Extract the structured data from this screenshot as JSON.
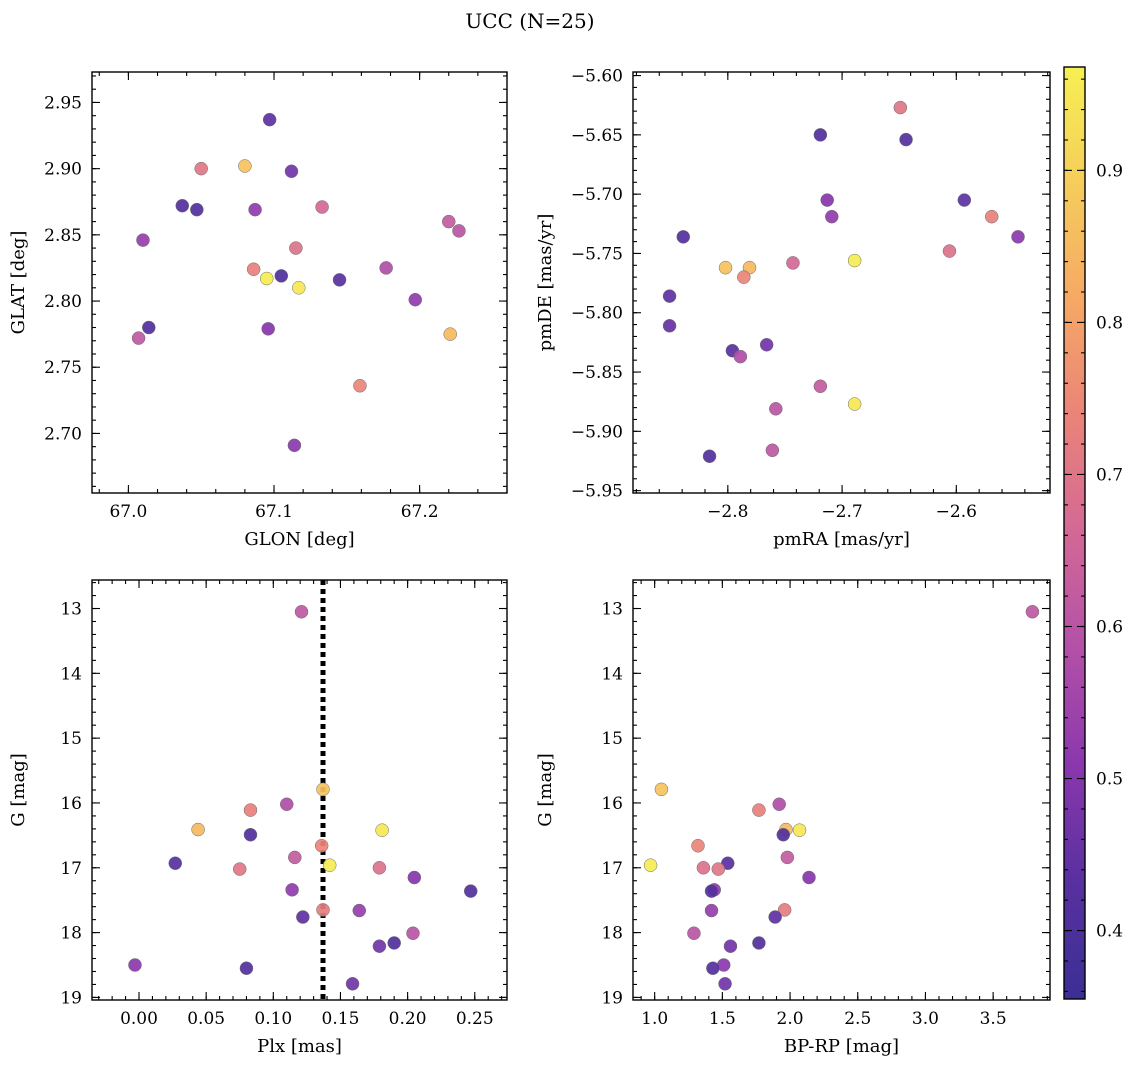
{
  "figure": {
    "title": "UCC (N=25)"
  },
  "colorbar": {
    "min": 0.355,
    "max": 0.968,
    "ticks": [
      0.4,
      0.5,
      0.6,
      0.7,
      0.8,
      0.9
    ],
    "tick_labels": [
      "0.4",
      "0.5",
      "0.6",
      "0.7",
      "0.8",
      "0.9"
    ],
    "colormap": "plasma",
    "colormap_stops": [
      "#3b2f94",
      "#5830a0",
      "#8a37ad",
      "#b350a8",
      "#d36896",
      "#ea8379",
      "#f6a865",
      "#f5cd5b",
      "#f6f052"
    ]
  },
  "chart_data": [
    {
      "type": "scatter",
      "id": "glon_glat",
      "xlabel": "GLON [deg]",
      "ylabel": "GLAT [deg]",
      "xlim": [
        66.975,
        67.26
      ],
      "ylim": [
        2.655,
        2.973
      ],
      "y_inverted": false,
      "grid": false,
      "xticks": [
        67.0,
        67.1,
        67.2
      ],
      "xtick_labels": [
        "67.0",
        "67.1",
        "67.2"
      ],
      "xminor_step": 0.02,
      "yticks": [
        2.7,
        2.75,
        2.8,
        2.85,
        2.9,
        2.95
      ],
      "ytick_labels": [
        "2.70",
        "2.75",
        "2.80",
        "2.85",
        "2.90",
        "2.95"
      ],
      "yminor_step": 0.01,
      "x": [
        67.097,
        67.112,
        67.08,
        67.05,
        67.037,
        67.047,
        67.087,
        67.133,
        67.01,
        67.22,
        67.227,
        67.115,
        67.086,
        67.105,
        67.095,
        67.117,
        67.145,
        67.177,
        67.014,
        67.197,
        67.096,
        67.007,
        67.221,
        67.159,
        67.114
      ],
      "y": [
        2.937,
        2.898,
        2.902,
        2.9,
        2.872,
        2.869,
        2.869,
        2.871,
        2.846,
        2.86,
        2.853,
        2.84,
        2.824,
        2.819,
        2.817,
        2.81,
        2.816,
        2.825,
        2.78,
        2.801,
        2.779,
        2.772,
        2.775,
        2.736,
        2.691
      ],
      "c": [
        0.44,
        0.47,
        0.87,
        0.7,
        0.42,
        0.41,
        0.52,
        0.66,
        0.53,
        0.62,
        0.6,
        0.69,
        0.73,
        0.41,
        0.96,
        0.95,
        0.43,
        0.58,
        0.41,
        0.52,
        0.5,
        0.61,
        0.85,
        0.74,
        0.51
      ]
    },
    {
      "type": "scatter",
      "id": "pmra_pmde",
      "xlabel": "pmRA [mas/yr]",
      "ylabel": "pmDE [mas/yr]",
      "xlim": [
        -2.883,
        -2.518
      ],
      "ylim": [
        -5.952,
        -5.597
      ],
      "y_inverted": false,
      "grid": false,
      "xticks": [
        -2.8,
        -2.7,
        -2.6
      ],
      "xtick_labels": [
        "−2.8",
        "−2.7",
        "−2.6"
      ],
      "xminor_step": 0.02,
      "yticks": [
        -5.95,
        -5.9,
        -5.85,
        -5.8,
        -5.75,
        -5.7,
        -5.65,
        -5.6
      ],
      "ytick_labels": [
        "−5.95",
        "−5.90",
        "−5.85",
        "−5.80",
        "−5.75",
        "−5.70",
        "−5.65",
        "−5.60"
      ],
      "yminor_step": 0.01,
      "x": [
        -2.649,
        -2.719,
        -2.644,
        -2.713,
        -2.709,
        -2.593,
        -2.569,
        -2.546,
        -2.839,
        -2.606,
        -2.743,
        -2.802,
        -2.781,
        -2.786,
        -2.689,
        -2.851,
        -2.851,
        -2.796,
        -2.766,
        -2.789,
        -2.719,
        -2.758,
        -2.689,
        -2.761,
        -2.816
      ],
      "y": [
        -5.627,
        -5.65,
        -5.654,
        -5.705,
        -5.719,
        -5.705,
        -5.719,
        -5.736,
        -5.736,
        -5.748,
        -5.758,
        -5.762,
        -5.762,
        -5.77,
        -5.756,
        -5.786,
        -5.811,
        -5.832,
        -5.827,
        -5.837,
        -5.862,
        -5.881,
        -5.877,
        -5.916,
        -5.921
      ],
      "c": [
        0.7,
        0.41,
        0.42,
        0.5,
        0.52,
        0.44,
        0.73,
        0.51,
        0.42,
        0.69,
        0.66,
        0.87,
        0.85,
        0.74,
        0.96,
        0.44,
        0.45,
        0.43,
        0.47,
        0.58,
        0.62,
        0.6,
        0.95,
        0.61,
        0.41
      ]
    },
    {
      "type": "scatter",
      "id": "plx_g",
      "xlabel": "Plx [mas]",
      "ylabel": "G [mag]",
      "xlim": [
        -0.035,
        0.274
      ],
      "ylim": [
        19.04,
        12.56
      ],
      "y_inverted": true,
      "grid": false,
      "xticks": [
        0.0,
        0.05,
        0.1,
        0.15,
        0.2,
        0.25
      ],
      "xtick_labels": [
        "0.00",
        "0.05",
        "0.10",
        "0.15",
        "0.20",
        "0.25"
      ],
      "xminor_step": 0.01,
      "yticks": [
        13,
        14,
        15,
        16,
        17,
        18,
        19
      ],
      "ytick_labels": [
        "13",
        "14",
        "15",
        "16",
        "17",
        "18",
        "19"
      ],
      "yminor_step": 0.2,
      "vline": {
        "x": 0.137,
        "style": "dotted",
        "color": "#000000"
      },
      "x": [
        0.121,
        0.137,
        0.044,
        0.083,
        0.11,
        0.083,
        0.181,
        0.116,
        0.136,
        0.027,
        0.142,
        0.075,
        0.179,
        0.205,
        0.114,
        0.247,
        0.137,
        0.164,
        0.122,
        0.204,
        0.179,
        0.19,
        -0.003,
        0.08,
        0.159
      ],
      "y": [
        13.05,
        15.79,
        16.41,
        16.11,
        16.02,
        16.49,
        16.42,
        16.84,
        16.66,
        16.93,
        16.96,
        17.02,
        17.0,
        17.15,
        17.34,
        17.36,
        17.65,
        17.66,
        17.76,
        18.01,
        18.21,
        18.16,
        18.5,
        18.55,
        18.79
      ],
      "c": [
        0.61,
        0.87,
        0.85,
        0.73,
        0.58,
        0.41,
        0.95,
        0.62,
        0.74,
        0.43,
        0.96,
        0.7,
        0.69,
        0.5,
        0.52,
        0.42,
        0.72,
        0.53,
        0.44,
        0.6,
        0.47,
        0.41,
        0.51,
        0.42,
        0.47
      ]
    },
    {
      "type": "scatter",
      "id": "bprp_g",
      "xlabel": "BP-RP [mag]",
      "ylabel": "G [mag]",
      "xlim": [
        0.84,
        3.92
      ],
      "ylim": [
        19.04,
        12.56
      ],
      "y_inverted": true,
      "grid": false,
      "xticks": [
        1.0,
        1.5,
        2.0,
        2.5,
        3.0,
        3.5
      ],
      "xtick_labels": [
        "1.0",
        "1.5",
        "2.0",
        "2.5",
        "3.0",
        "3.5"
      ],
      "xminor_step": 0.1,
      "yticks": [
        13,
        14,
        15,
        16,
        17,
        18,
        19
      ],
      "ytick_labels": [
        "13",
        "14",
        "15",
        "16",
        "17",
        "18",
        "19"
      ],
      "yminor_step": 0.2,
      "x": [
        3.79,
        1.05,
        1.92,
        1.77,
        1.97,
        1.95,
        2.07,
        1.98,
        1.32,
        1.54,
        0.97,
        1.36,
        1.47,
        2.14,
        1.44,
        1.42,
        1.96,
        1.42,
        1.89,
        1.29,
        1.56,
        1.77,
        1.51,
        1.43,
        1.52
      ],
      "y": [
        13.05,
        15.79,
        16.02,
        16.11,
        16.41,
        16.49,
        16.42,
        16.84,
        16.66,
        16.93,
        16.96,
        17.0,
        17.02,
        17.15,
        17.34,
        17.36,
        17.65,
        17.66,
        17.76,
        18.01,
        18.21,
        18.16,
        18.5,
        18.55,
        18.79
      ],
      "c": [
        0.61,
        0.87,
        0.58,
        0.73,
        0.85,
        0.41,
        0.95,
        0.62,
        0.74,
        0.43,
        0.96,
        0.69,
        0.7,
        0.5,
        0.52,
        0.42,
        0.72,
        0.53,
        0.44,
        0.6,
        0.47,
        0.41,
        0.51,
        0.42,
        0.47
      ]
    }
  ]
}
